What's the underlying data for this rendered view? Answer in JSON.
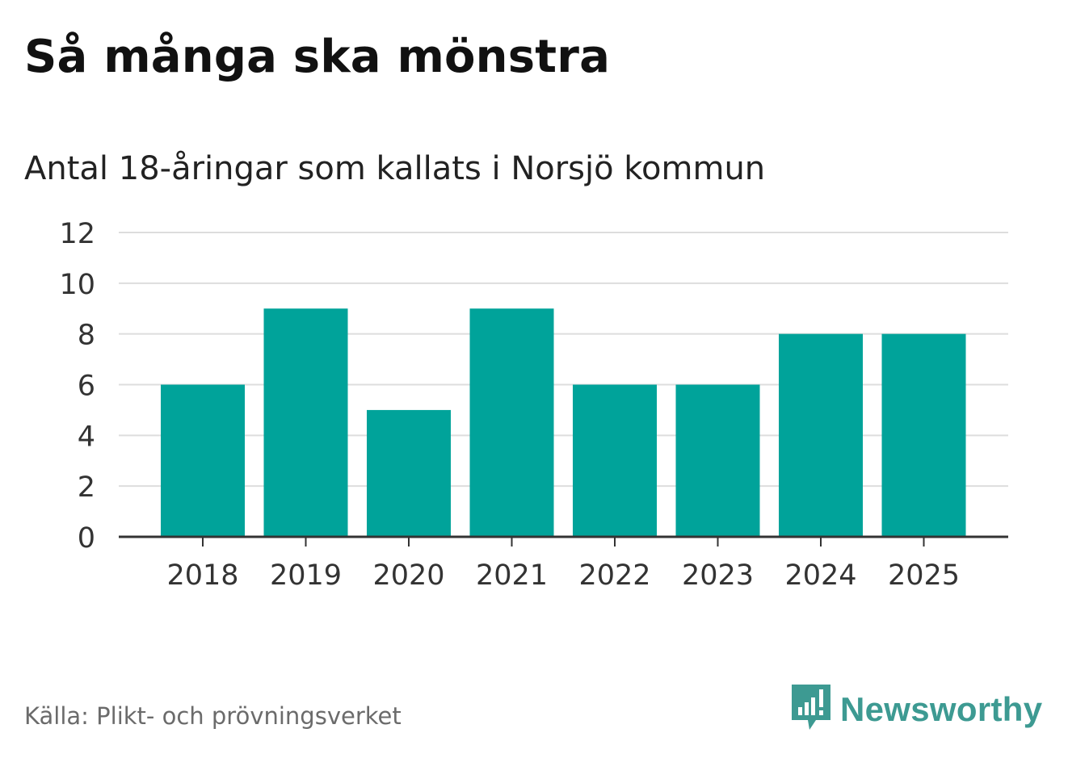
{
  "title": "Så många ska mönstra",
  "subtitle": "Antal 18-åringar som kallats i Norsjö kommun",
  "source": "Källa: Plikt- och prövningsverket",
  "brand": {
    "name": "Newsworthy",
    "color": "#3d9a92",
    "icon": "newsworthy-logo-icon"
  },
  "colors": {
    "bar": "#00a39a",
    "grid": "#dddddd",
    "axis": "#333333"
  },
  "chart_data": {
    "type": "bar",
    "title": "Så många ska mönstra",
    "subtitle": "Antal 18-åringar som kallats i Norsjö kommun",
    "categories": [
      "2018",
      "2019",
      "2020",
      "2021",
      "2022",
      "2023",
      "2024",
      "2025"
    ],
    "values": [
      6,
      9,
      5,
      9,
      6,
      6,
      8,
      8
    ],
    "yticks": [
      0,
      2,
      4,
      6,
      8,
      10,
      12
    ],
    "ylim": [
      0,
      12
    ],
    "xlabel": "",
    "ylabel": "",
    "grid": true
  }
}
